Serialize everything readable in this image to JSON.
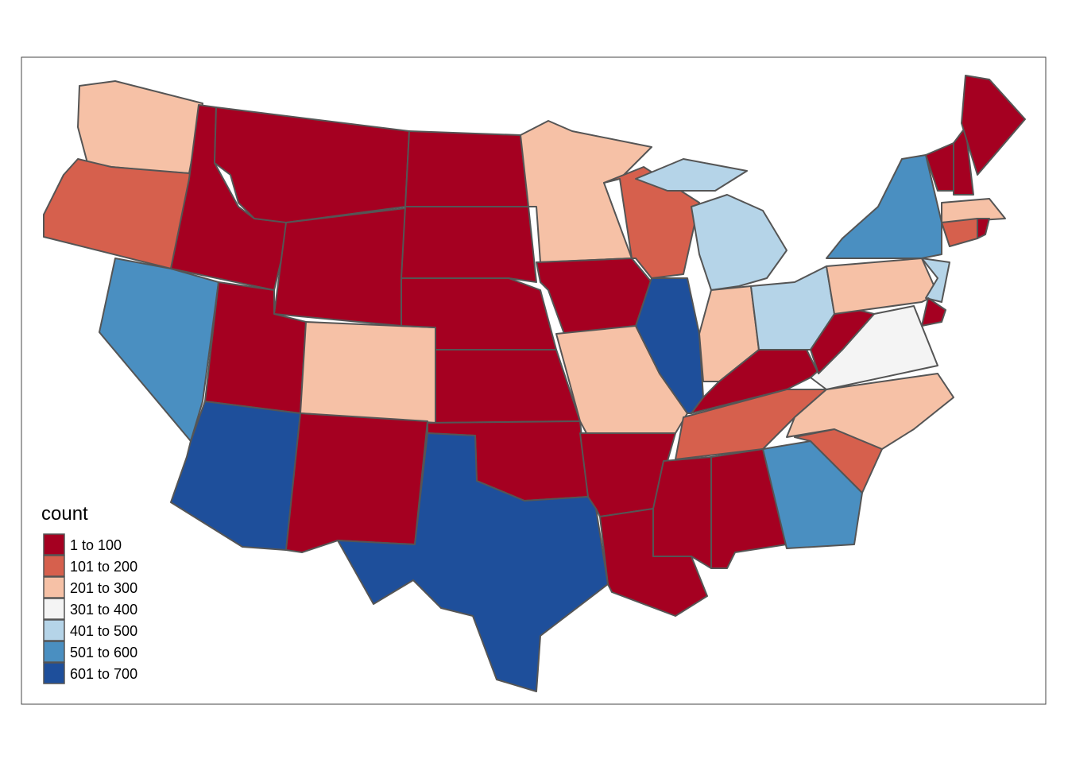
{
  "legend": {
    "title": "count",
    "items": [
      {
        "label": "1 to 100",
        "color": "#a50021"
      },
      {
        "label": "101 to 200",
        "color": "#d6604d"
      },
      {
        "label": "201 to 300",
        "color": "#f6c1a6"
      },
      {
        "label": "301 to 400",
        "color": "#f4f4f4"
      },
      {
        "label": "401 to 500",
        "color": "#b5d4e8"
      },
      {
        "label": "501 to 600",
        "color": "#4a8fc1"
      },
      {
        "label": "601 to 700",
        "color": "#1e4f9b"
      }
    ]
  }
}
